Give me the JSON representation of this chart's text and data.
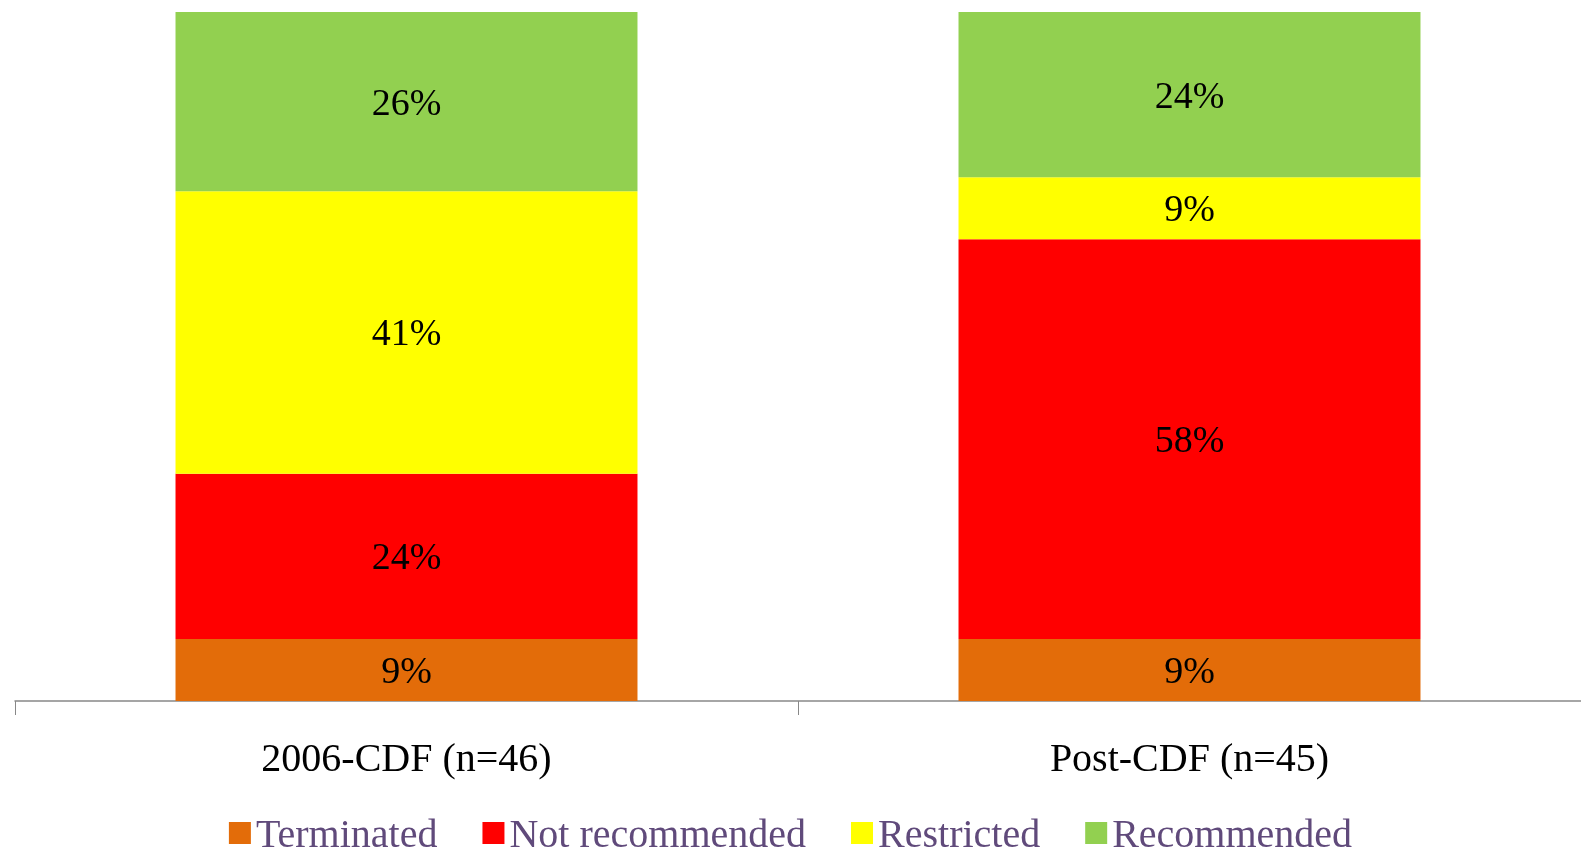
{
  "chart_data": {
    "type": "bar",
    "stacked": true,
    "categories": [
      "2006-CDF (n=46)",
      "Post-CDF (n=45)"
    ],
    "series": [
      {
        "name": "Terminated",
        "color": "#e36c09",
        "values": [
          9,
          9
        ],
        "value_labels": [
          "9%",
          "9%"
        ]
      },
      {
        "name": "Not recommended",
        "color": "#ff0000",
        "values": [
          24,
          58
        ],
        "value_labels": [
          "24%",
          "58%"
        ]
      },
      {
        "name": "Restricted",
        "color": "#ffff00",
        "values": [
          41,
          9
        ],
        "value_labels": [
          "41%",
          "9%"
        ]
      },
      {
        "name": "Recommended",
        "color": "#92d050",
        "values": [
          26,
          24
        ],
        "value_labels": [
          "26%",
          "24%"
        ]
      }
    ],
    "legend": "bottom",
    "grid": false
  }
}
